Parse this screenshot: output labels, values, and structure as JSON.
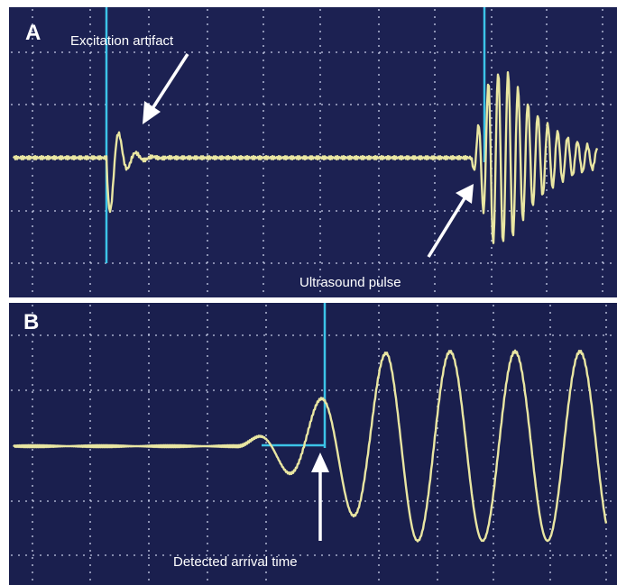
{
  "panels": [
    {
      "label": "A",
      "annotations": [
        "Excitation artifact",
        "Ultrasound pulse"
      ]
    },
    {
      "label": "B",
      "annotations": [
        "Detected arrival time"
      ]
    }
  ]
}
